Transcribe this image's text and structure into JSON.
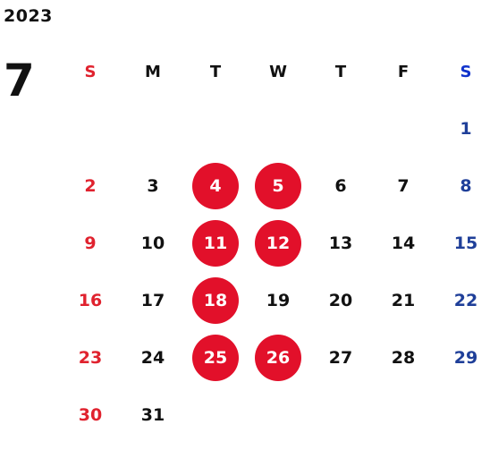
{
  "calendar": {
    "year": "2023",
    "month": "7",
    "weekdays": [
      "S",
      "M",
      "T",
      "W",
      "T",
      "F",
      "S"
    ],
    "highlight_color": "#e2102a",
    "weekday_colors": {
      "sunday": "#e0222e",
      "saturday": "#1f3f99",
      "default": "#111111"
    },
    "weeks": [
      [
        null,
        null,
        null,
        null,
        null,
        null,
        1
      ],
      [
        2,
        3,
        4,
        5,
        6,
        7,
        8
      ],
      [
        9,
        10,
        11,
        12,
        13,
        14,
        15
      ],
      [
        16,
        17,
        18,
        19,
        20,
        21,
        22
      ],
      [
        23,
        24,
        25,
        26,
        27,
        28,
        29
      ],
      [
        30,
        31,
        null,
        null,
        null,
        null,
        null
      ]
    ],
    "highlighted_days": [
      4,
      5,
      11,
      12,
      18,
      25,
      26
    ]
  }
}
